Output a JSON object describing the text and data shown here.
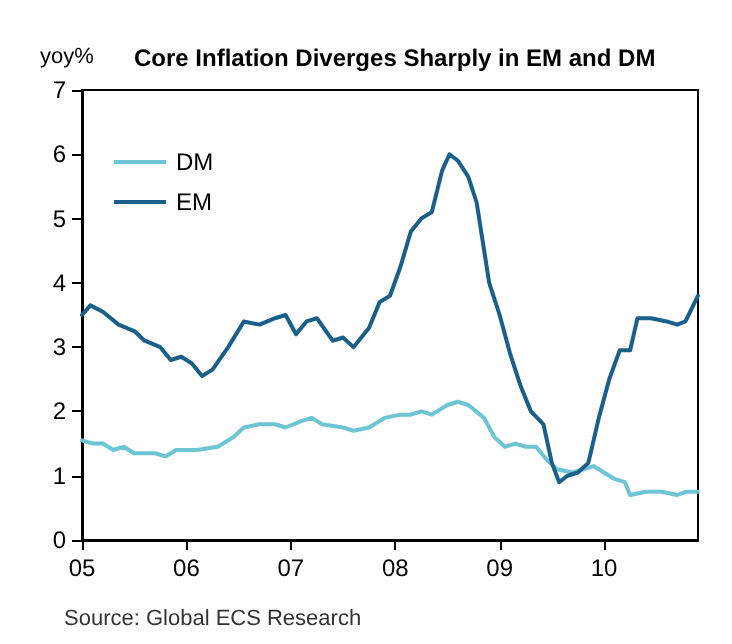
{
  "chart_data": {
    "type": "line",
    "title": "Core Inflation Diverges Sharply in EM and DM",
    "ylabel": "yoy%",
    "annotations": [
      "Source: Global ECS Research"
    ],
    "xlim": [
      2005,
      2010.9
    ],
    "xticks": [
      {
        "value": 2005,
        "label": "05"
      },
      {
        "value": 2006,
        "label": "06"
      },
      {
        "value": 2007,
        "label": "07"
      },
      {
        "value": 2008,
        "label": "08"
      },
      {
        "value": 2009,
        "label": "09"
      },
      {
        "value": 2010,
        "label": "10"
      }
    ],
    "ylim": [
      0,
      7
    ],
    "yticks": [
      0,
      1,
      2,
      3,
      4,
      5,
      6,
      7
    ],
    "grid": false,
    "legend": "top left",
    "marker": "none",
    "line_style": "solid",
    "series": [
      {
        "name": "DM",
        "color": "#6cc4d4",
        "x": [
          2005.0,
          2005.1,
          2005.2,
          2005.3,
          2005.4,
          2005.5,
          2005.7,
          2005.8,
          2005.9,
          2006.1,
          2006.3,
          2006.45,
          2006.55,
          2006.7,
          2006.85,
          2006.95,
          2007.1,
          2007.2,
          2007.3,
          2007.5,
          2007.6,
          2007.75,
          2007.9,
          2008.05,
          2008.15,
          2008.25,
          2008.35,
          2008.5,
          2008.6,
          2008.7,
          2008.85,
          2008.95,
          2009.05,
          2009.15,
          2009.25,
          2009.35,
          2009.45,
          2009.55,
          2009.7,
          2009.8,
          2009.9,
          2010.0,
          2010.1,
          2010.2,
          2010.25,
          2010.4,
          2010.55,
          2010.7,
          2010.78,
          2010.9
        ],
        "values": [
          1.55,
          1.5,
          1.5,
          1.4,
          1.45,
          1.35,
          1.35,
          1.3,
          1.4,
          1.4,
          1.45,
          1.6,
          1.75,
          1.8,
          1.8,
          1.75,
          1.85,
          1.9,
          1.8,
          1.75,
          1.7,
          1.75,
          1.9,
          1.95,
          1.95,
          2.0,
          1.95,
          2.1,
          2.15,
          2.1,
          1.9,
          1.6,
          1.45,
          1.5,
          1.45,
          1.45,
          1.25,
          1.1,
          1.05,
          1.1,
          1.15,
          1.05,
          0.95,
          0.9,
          0.7,
          0.75,
          0.75,
          0.7,
          0.75,
          0.75
        ]
      },
      {
        "name": "EM",
        "color": "#1a5f8a",
        "x": [
          2005.0,
          2005.08,
          2005.2,
          2005.35,
          2005.5,
          2005.6,
          2005.75,
          2005.85,
          2005.95,
          2006.05,
          2006.15,
          2006.25,
          2006.4,
          2006.55,
          2006.7,
          2006.85,
          2006.95,
          2007.05,
          2007.15,
          2007.25,
          2007.4,
          2007.5,
          2007.6,
          2007.75,
          2007.85,
          2007.95,
          2008.05,
          2008.15,
          2008.25,
          2008.35,
          2008.45,
          2008.52,
          2008.6,
          2008.7,
          2008.78,
          2008.9,
          2009.0,
          2009.1,
          2009.2,
          2009.3,
          2009.42,
          2009.5,
          2009.57,
          2009.65,
          2009.75,
          2009.85,
          2009.95,
          2010.05,
          2010.15,
          2010.25,
          2010.32,
          2010.45,
          2010.6,
          2010.7,
          2010.78,
          2010.9
        ],
        "values": [
          3.5,
          3.65,
          3.55,
          3.35,
          3.25,
          3.1,
          3.0,
          2.8,
          2.85,
          2.75,
          2.55,
          2.65,
          3.0,
          3.4,
          3.35,
          3.45,
          3.5,
          3.2,
          3.4,
          3.45,
          3.1,
          3.15,
          3.0,
          3.3,
          3.7,
          3.8,
          4.25,
          4.8,
          5.0,
          5.1,
          5.75,
          6.0,
          5.9,
          5.65,
          5.25,
          4.0,
          3.5,
          2.9,
          2.4,
          2.0,
          1.8,
          1.2,
          0.9,
          1.0,
          1.05,
          1.2,
          1.9,
          2.5,
          2.95,
          2.95,
          3.45,
          3.45,
          3.4,
          3.35,
          3.4,
          3.8
        ]
      }
    ]
  }
}
